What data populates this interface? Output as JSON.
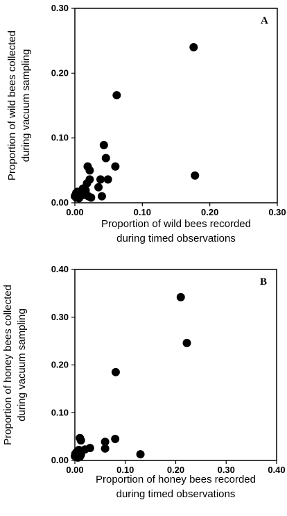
{
  "chart_data": [
    {
      "type": "scatter",
      "panel_label": "A",
      "xlabel_lines": [
        "Proportion of wild bees recorded",
        "during timed observations"
      ],
      "ylabel_lines": [
        "Proportion of wild bees collected",
        "during vacuum sampling"
      ],
      "xlim": [
        0,
        0.3
      ],
      "ylim": [
        0,
        0.3
      ],
      "xticks": [
        "0.00",
        "0.10",
        "0.20",
        "0.30"
      ],
      "yticks": [
        "0.00",
        "0.10",
        "0.20",
        "0.30"
      ],
      "grid": false,
      "points": [
        {
          "x": 0.176,
          "y": 0.24
        },
        {
          "x": 0.062,
          "y": 0.166
        },
        {
          "x": 0.178,
          "y": 0.042
        },
        {
          "x": 0.043,
          "y": 0.089
        },
        {
          "x": 0.046,
          "y": 0.069
        },
        {
          "x": 0.06,
          "y": 0.056
        },
        {
          "x": 0.019,
          "y": 0.056
        },
        {
          "x": 0.022,
          "y": 0.05
        },
        {
          "x": 0.022,
          "y": 0.036
        },
        {
          "x": 0.018,
          "y": 0.03
        },
        {
          "x": 0.038,
          "y": 0.036
        },
        {
          "x": 0.049,
          "y": 0.036
        },
        {
          "x": 0.035,
          "y": 0.024
        },
        {
          "x": 0.012,
          "y": 0.022
        },
        {
          "x": 0.016,
          "y": 0.019
        },
        {
          "x": 0.01,
          "y": 0.017
        },
        {
          "x": 0.004,
          "y": 0.017
        },
        {
          "x": 0.002,
          "y": 0.015
        },
        {
          "x": 0.001,
          "y": 0.012
        },
        {
          "x": 0.0,
          "y": 0.01
        },
        {
          "x": 0.002,
          "y": 0.008
        },
        {
          "x": 0.004,
          "y": 0.011
        },
        {
          "x": 0.006,
          "y": 0.007
        },
        {
          "x": 0.012,
          "y": 0.012
        },
        {
          "x": 0.02,
          "y": 0.01
        },
        {
          "x": 0.024,
          "y": 0.008
        },
        {
          "x": 0.04,
          "y": 0.01
        }
      ]
    },
    {
      "type": "scatter",
      "panel_label": "B",
      "xlabel_lines": [
        "Proportion of honey bees recorded",
        "during timed observations"
      ],
      "ylabel_lines": [
        "Proportion of honey bees collected",
        "during vacuum sampling"
      ],
      "xlim": [
        0,
        0.4
      ],
      "ylim": [
        0,
        0.4
      ],
      "xticks": [
        "0.00",
        "0.10",
        "0.20",
        "0.30",
        "0.40"
      ],
      "yticks": [
        "0.00",
        "0.10",
        "0.20",
        "0.30",
        "0.40"
      ],
      "grid": false,
      "points": [
        {
          "x": 0.21,
          "y": 0.342
        },
        {
          "x": 0.222,
          "y": 0.246
        },
        {
          "x": 0.081,
          "y": 0.185
        },
        {
          "x": 0.01,
          "y": 0.047
        },
        {
          "x": 0.012,
          "y": 0.042
        },
        {
          "x": 0.08,
          "y": 0.045
        },
        {
          "x": 0.06,
          "y": 0.039
        },
        {
          "x": 0.06,
          "y": 0.025
        },
        {
          "x": 0.03,
          "y": 0.026
        },
        {
          "x": 0.02,
          "y": 0.023
        },
        {
          "x": 0.13,
          "y": 0.013
        },
        {
          "x": 0.008,
          "y": 0.022
        },
        {
          "x": 0.004,
          "y": 0.018
        },
        {
          "x": 0.001,
          "y": 0.014
        },
        {
          "x": 0.0,
          "y": 0.009
        },
        {
          "x": 0.003,
          "y": 0.007
        },
        {
          "x": 0.006,
          "y": 0.006
        },
        {
          "x": 0.01,
          "y": 0.008
        },
        {
          "x": 0.012,
          "y": 0.012
        }
      ]
    }
  ]
}
